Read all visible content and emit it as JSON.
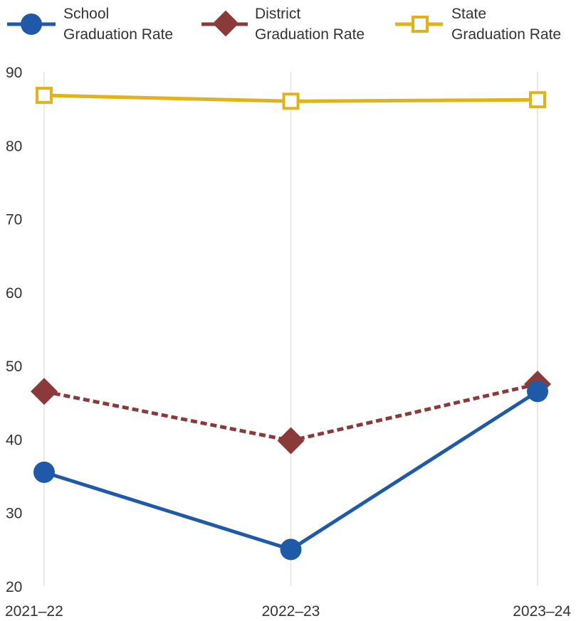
{
  "chart_data": {
    "type": "line",
    "title": "",
    "xlabel": "",
    "ylabel": "",
    "categories": [
      "2021–22",
      "2022–23",
      "2023–24"
    ],
    "ylim": [
      20,
      90
    ],
    "yticks": [
      "90",
      "80",
      "70",
      "60",
      "50",
      "40",
      "30",
      "20"
    ],
    "ytick_values": [
      90,
      80,
      70,
      60,
      50,
      40,
      30,
      20
    ],
    "grid": "vertical lines at each category",
    "legend_position": "top",
    "series": [
      {
        "name_lines": [
          "School",
          "Graduation Rate"
        ],
        "values": [
          35.5,
          25.0,
          46.5
        ],
        "color": "#1f5aa8",
        "marker": "circle",
        "line_style": "solid"
      },
      {
        "name_lines": [
          "District",
          "Graduation Rate"
        ],
        "values": [
          46.5,
          39.8,
          47.5
        ],
        "color": "#8b3a3a",
        "marker": "diamond",
        "line_style": "dashed"
      },
      {
        "name_lines": [
          "State",
          "Graduation Rate"
        ],
        "values": [
          86.8,
          86.0,
          86.2
        ],
        "color": "#e0b31c",
        "marker": "open-square",
        "line_style": "solid"
      }
    ]
  }
}
